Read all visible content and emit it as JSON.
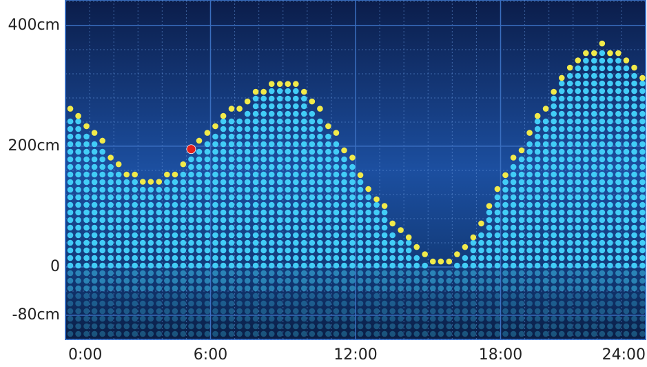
{
  "chart_data": {
    "type": "dot-column",
    "x": [
      0.2,
      0.53,
      0.87,
      1.2,
      1.53,
      1.87,
      2.2,
      2.53,
      2.87,
      3.2,
      3.53,
      3.87,
      4.2,
      4.53,
      4.87,
      5.2,
      5.53,
      5.87,
      6.2,
      6.53,
      6.87,
      7.2,
      7.53,
      7.87,
      8.2,
      8.53,
      8.87,
      9.2,
      9.53,
      9.87,
      10.2,
      10.53,
      10.87,
      11.2,
      11.53,
      11.87,
      12.2,
      12.53,
      12.87,
      13.2,
      13.53,
      13.87,
      14.2,
      14.53,
      14.87,
      15.2,
      15.53,
      15.87,
      16.2,
      16.53,
      16.87,
      17.2,
      17.53,
      17.87,
      18.2,
      18.53,
      18.87,
      19.2,
      19.53,
      19.87,
      20.2,
      20.53,
      20.87,
      21.2,
      21.53,
      21.87,
      22.2,
      22.53,
      22.87,
      23.2,
      23.53,
      23.87
    ],
    "values": [
      262,
      250,
      233,
      222,
      209,
      181,
      170,
      153,
      153,
      141,
      141,
      141,
      153,
      153,
      170,
      195,
      209,
      222,
      233,
      250,
      262,
      262,
      274,
      290,
      290,
      303,
      303,
      303,
      303,
      290,
      274,
      262,
      233,
      222,
      193,
      181,
      152,
      129,
      112,
      101,
      72,
      61,
      49,
      33,
      21,
      9,
      9,
      9,
      21,
      33,
      49,
      72,
      101,
      129,
      152,
      181,
      193,
      222,
      250,
      262,
      290,
      313,
      330,
      342,
      354,
      354,
      370,
      354,
      354,
      342,
      330,
      313
    ],
    "color": "#42cdf7",
    "top_color": "#f2ea4a",
    "highlight_color": "#e3201c",
    "highlight_index": 15,
    "xlim": [
      0,
      24
    ],
    "xticks": [
      {
        "value": 0,
        "label": "0:00"
      },
      {
        "value": 6,
        "label": "6:00"
      },
      {
        "value": 12,
        "label": "12:00"
      },
      {
        "value": 18,
        "label": "18:00"
      },
      {
        "value": 24,
        "label": "24:00"
      }
    ],
    "ylim": [
      -120,
      442
    ],
    "yticks": [
      {
        "value": 400,
        "label": "400cm"
      },
      {
        "value": 200,
        "label": "200cm"
      },
      0,
      {
        "value": -80,
        "label": "-80cm"
      }
    ],
    "grid": true
  }
}
